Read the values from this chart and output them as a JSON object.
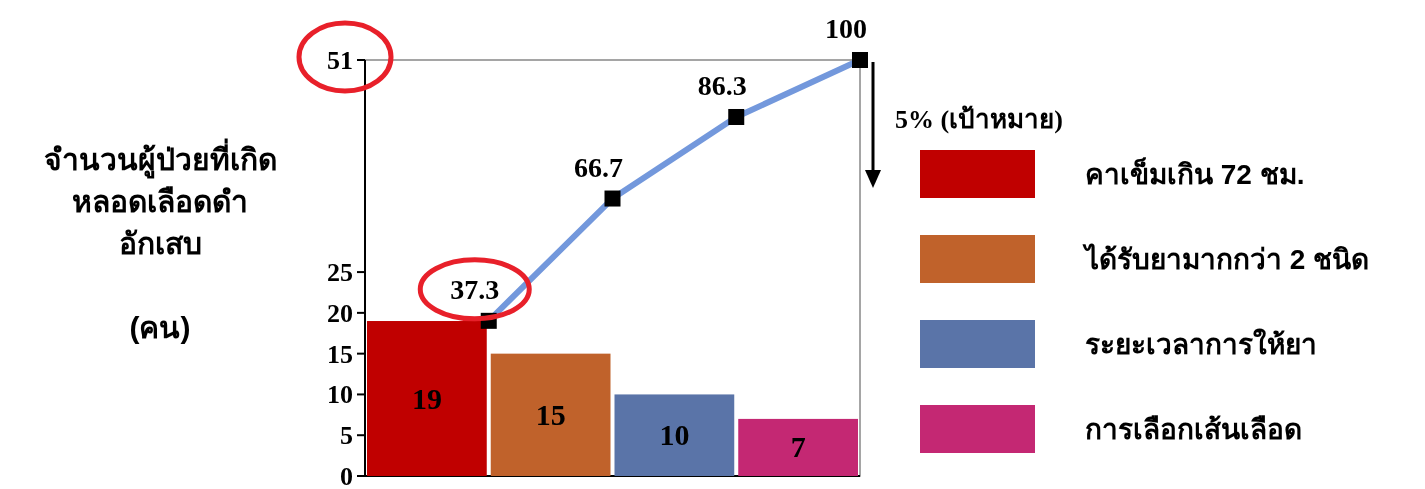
{
  "chart_data": {
    "type": "bar",
    "ylabel": "จำนวนผู้ป่วยที่เกิด\nหลอดเลือดดำ\nอักเสบ\n\n(คน)",
    "categories": [
      null,
      null,
      null,
      null
    ],
    "series": [
      {
        "name": "คาเข็มเกิน 72  ชม.",
        "color": "#c00000",
        "values": [
          19,
          null,
          null,
          null
        ]
      },
      {
        "name": "ได้รับยามากกว่า 2 ชนิด",
        "color": "#c0622b",
        "values": [
          null,
          15,
          null,
          null
        ]
      },
      {
        "name": "ระยะเวลาการให้ยา",
        "color": "#5a74a8",
        "values": [
          null,
          null,
          10,
          null
        ]
      },
      {
        "name": "การเลือกเส้นเลือด",
        "color": "#c42873",
        "values": [
          null,
          null,
          null,
          7
        ]
      },
      {
        "type": "line",
        "axis": "y2",
        "values": [
          37.3,
          66.7,
          86.3,
          100
        ],
        "color": "#7398dc",
        "marker": "square"
      }
    ],
    "ylim": [
      0,
      51
    ],
    "yticks": [
      0,
      5,
      10,
      15,
      20,
      25,
      51
    ],
    "y2lim": [
      0,
      100
    ],
    "annotations": [
      "5% (เป้าหมาย)"
    ],
    "data_labels": true,
    "legend": "right"
  }
}
